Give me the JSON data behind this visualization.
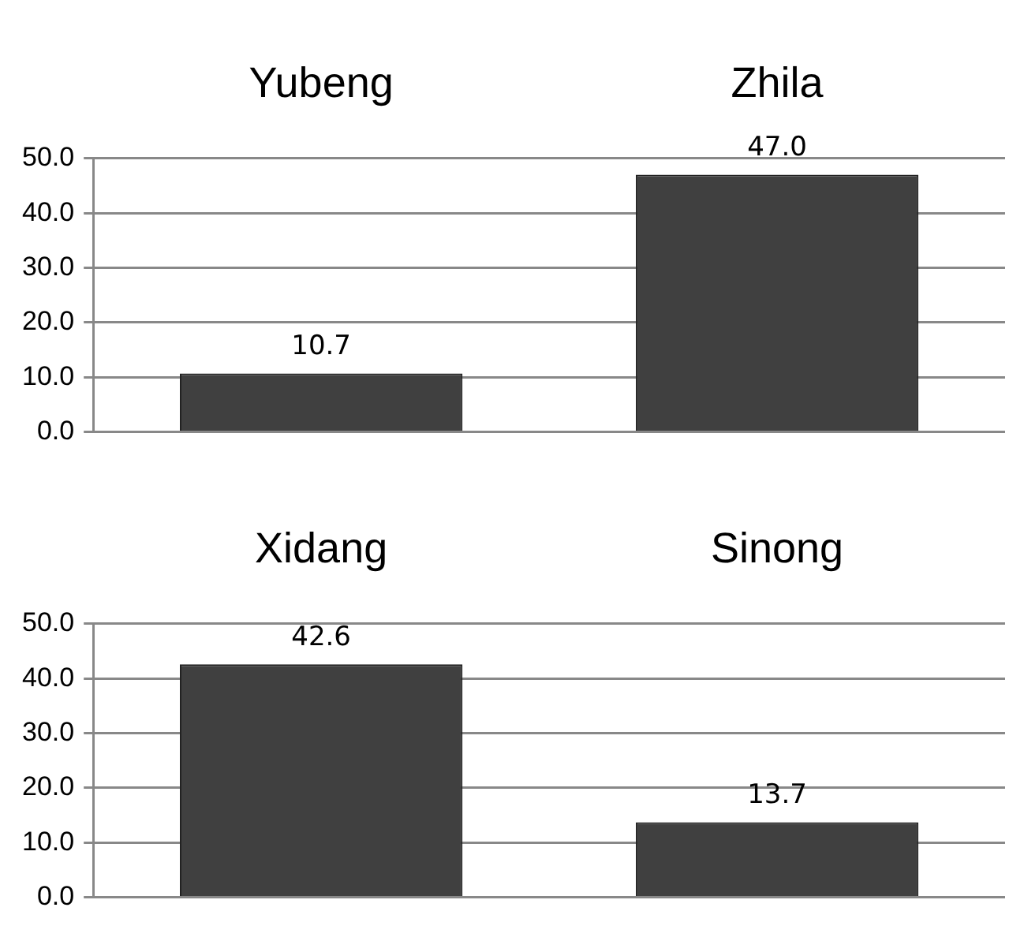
{
  "chart_data": [
    {
      "type": "bar",
      "categories": [
        "Yubeng",
        "Zhila"
      ],
      "values": [
        10.7,
        47.0
      ],
      "color": "#404040",
      "value_labels": [
        "10.7",
        "47.0"
      ],
      "ylim": [
        0,
        50
      ],
      "yticks": [
        {
          "value": 0,
          "label": "0.0"
        },
        {
          "value": 10,
          "label": "10.0"
        },
        {
          "value": 20,
          "label": "20.0"
        },
        {
          "value": 30,
          "label": "30.0"
        },
        {
          "value": 40,
          "label": "40.0"
        },
        {
          "value": 50,
          "label": "50.0"
        }
      ],
      "grid": "y"
    },
    {
      "type": "bar",
      "categories": [
        "Xidang",
        "Sinong"
      ],
      "values": [
        42.6,
        13.7
      ],
      "color": "#404040",
      "value_labels": [
        "42.6",
        "13.7"
      ],
      "ylim": [
        0,
        50
      ],
      "yticks": [
        {
          "value": 0,
          "label": "0.0"
        },
        {
          "value": 10,
          "label": "10.0"
        },
        {
          "value": 20,
          "label": "20.0"
        },
        {
          "value": 30,
          "label": "30.0"
        },
        {
          "value": 40,
          "label": "40.0"
        },
        {
          "value": 50,
          "label": "50.0"
        }
      ],
      "grid": "y"
    }
  ]
}
